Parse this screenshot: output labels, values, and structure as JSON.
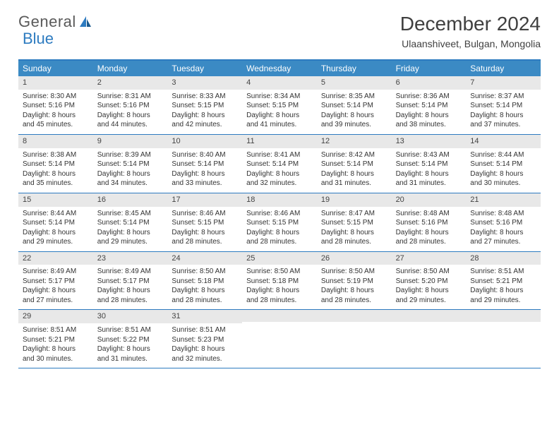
{
  "logo": {
    "text1": "General",
    "text2": "Blue"
  },
  "title": "December 2024",
  "location": "Ulaanshiveet, Bulgan, Mongolia",
  "colors": {
    "header_bg": "#3b8ac4",
    "header_text": "#ffffff",
    "border": "#2d7bc0",
    "daynum_bg": "#e8e8e8",
    "text": "#333333",
    "logo_gray": "#5a5a5a",
    "logo_blue": "#2d7bc0"
  },
  "day_headers": [
    "Sunday",
    "Monday",
    "Tuesday",
    "Wednesday",
    "Thursday",
    "Friday",
    "Saturday"
  ],
  "weeks": [
    [
      {
        "n": "1",
        "sr": "Sunrise: 8:30 AM",
        "ss": "Sunset: 5:16 PM",
        "d1": "Daylight: 8 hours",
        "d2": "and 45 minutes."
      },
      {
        "n": "2",
        "sr": "Sunrise: 8:31 AM",
        "ss": "Sunset: 5:16 PM",
        "d1": "Daylight: 8 hours",
        "d2": "and 44 minutes."
      },
      {
        "n": "3",
        "sr": "Sunrise: 8:33 AM",
        "ss": "Sunset: 5:15 PM",
        "d1": "Daylight: 8 hours",
        "d2": "and 42 minutes."
      },
      {
        "n": "4",
        "sr": "Sunrise: 8:34 AM",
        "ss": "Sunset: 5:15 PM",
        "d1": "Daylight: 8 hours",
        "d2": "and 41 minutes."
      },
      {
        "n": "5",
        "sr": "Sunrise: 8:35 AM",
        "ss": "Sunset: 5:14 PM",
        "d1": "Daylight: 8 hours",
        "d2": "and 39 minutes."
      },
      {
        "n": "6",
        "sr": "Sunrise: 8:36 AM",
        "ss": "Sunset: 5:14 PM",
        "d1": "Daylight: 8 hours",
        "d2": "and 38 minutes."
      },
      {
        "n": "7",
        "sr": "Sunrise: 8:37 AM",
        "ss": "Sunset: 5:14 PM",
        "d1": "Daylight: 8 hours",
        "d2": "and 37 minutes."
      }
    ],
    [
      {
        "n": "8",
        "sr": "Sunrise: 8:38 AM",
        "ss": "Sunset: 5:14 PM",
        "d1": "Daylight: 8 hours",
        "d2": "and 35 minutes."
      },
      {
        "n": "9",
        "sr": "Sunrise: 8:39 AM",
        "ss": "Sunset: 5:14 PM",
        "d1": "Daylight: 8 hours",
        "d2": "and 34 minutes."
      },
      {
        "n": "10",
        "sr": "Sunrise: 8:40 AM",
        "ss": "Sunset: 5:14 PM",
        "d1": "Daylight: 8 hours",
        "d2": "and 33 minutes."
      },
      {
        "n": "11",
        "sr": "Sunrise: 8:41 AM",
        "ss": "Sunset: 5:14 PM",
        "d1": "Daylight: 8 hours",
        "d2": "and 32 minutes."
      },
      {
        "n": "12",
        "sr": "Sunrise: 8:42 AM",
        "ss": "Sunset: 5:14 PM",
        "d1": "Daylight: 8 hours",
        "d2": "and 31 minutes."
      },
      {
        "n": "13",
        "sr": "Sunrise: 8:43 AM",
        "ss": "Sunset: 5:14 PM",
        "d1": "Daylight: 8 hours",
        "d2": "and 31 minutes."
      },
      {
        "n": "14",
        "sr": "Sunrise: 8:44 AM",
        "ss": "Sunset: 5:14 PM",
        "d1": "Daylight: 8 hours",
        "d2": "and 30 minutes."
      }
    ],
    [
      {
        "n": "15",
        "sr": "Sunrise: 8:44 AM",
        "ss": "Sunset: 5:14 PM",
        "d1": "Daylight: 8 hours",
        "d2": "and 29 minutes."
      },
      {
        "n": "16",
        "sr": "Sunrise: 8:45 AM",
        "ss": "Sunset: 5:14 PM",
        "d1": "Daylight: 8 hours",
        "d2": "and 29 minutes."
      },
      {
        "n": "17",
        "sr": "Sunrise: 8:46 AM",
        "ss": "Sunset: 5:15 PM",
        "d1": "Daylight: 8 hours",
        "d2": "and 28 minutes."
      },
      {
        "n": "18",
        "sr": "Sunrise: 8:46 AM",
        "ss": "Sunset: 5:15 PM",
        "d1": "Daylight: 8 hours",
        "d2": "and 28 minutes."
      },
      {
        "n": "19",
        "sr": "Sunrise: 8:47 AM",
        "ss": "Sunset: 5:15 PM",
        "d1": "Daylight: 8 hours",
        "d2": "and 28 minutes."
      },
      {
        "n": "20",
        "sr": "Sunrise: 8:48 AM",
        "ss": "Sunset: 5:16 PM",
        "d1": "Daylight: 8 hours",
        "d2": "and 28 minutes."
      },
      {
        "n": "21",
        "sr": "Sunrise: 8:48 AM",
        "ss": "Sunset: 5:16 PM",
        "d1": "Daylight: 8 hours",
        "d2": "and 27 minutes."
      }
    ],
    [
      {
        "n": "22",
        "sr": "Sunrise: 8:49 AM",
        "ss": "Sunset: 5:17 PM",
        "d1": "Daylight: 8 hours",
        "d2": "and 27 minutes."
      },
      {
        "n": "23",
        "sr": "Sunrise: 8:49 AM",
        "ss": "Sunset: 5:17 PM",
        "d1": "Daylight: 8 hours",
        "d2": "and 28 minutes."
      },
      {
        "n": "24",
        "sr": "Sunrise: 8:50 AM",
        "ss": "Sunset: 5:18 PM",
        "d1": "Daylight: 8 hours",
        "d2": "and 28 minutes."
      },
      {
        "n": "25",
        "sr": "Sunrise: 8:50 AM",
        "ss": "Sunset: 5:18 PM",
        "d1": "Daylight: 8 hours",
        "d2": "and 28 minutes."
      },
      {
        "n": "26",
        "sr": "Sunrise: 8:50 AM",
        "ss": "Sunset: 5:19 PM",
        "d1": "Daylight: 8 hours",
        "d2": "and 28 minutes."
      },
      {
        "n": "27",
        "sr": "Sunrise: 8:50 AM",
        "ss": "Sunset: 5:20 PM",
        "d1": "Daylight: 8 hours",
        "d2": "and 29 minutes."
      },
      {
        "n": "28",
        "sr": "Sunrise: 8:51 AM",
        "ss": "Sunset: 5:21 PM",
        "d1": "Daylight: 8 hours",
        "d2": "and 29 minutes."
      }
    ],
    [
      {
        "n": "29",
        "sr": "Sunrise: 8:51 AM",
        "ss": "Sunset: 5:21 PM",
        "d1": "Daylight: 8 hours",
        "d2": "and 30 minutes."
      },
      {
        "n": "30",
        "sr": "Sunrise: 8:51 AM",
        "ss": "Sunset: 5:22 PM",
        "d1": "Daylight: 8 hours",
        "d2": "and 31 minutes."
      },
      {
        "n": "31",
        "sr": "Sunrise: 8:51 AM",
        "ss": "Sunset: 5:23 PM",
        "d1": "Daylight: 8 hours",
        "d2": "and 32 minutes."
      },
      null,
      null,
      null,
      null
    ]
  ]
}
